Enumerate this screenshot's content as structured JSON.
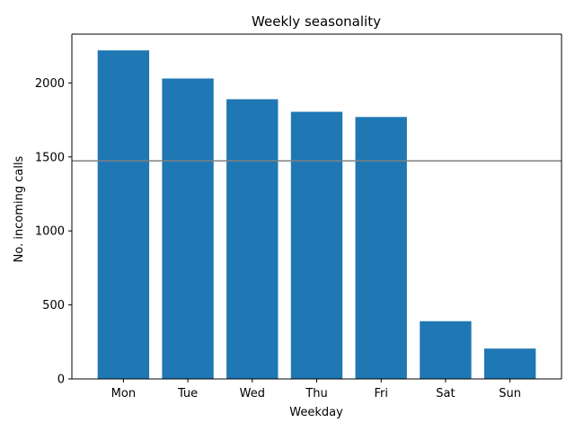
{
  "chart_data": {
    "type": "bar",
    "title": "Weekly seasonality",
    "xlabel": "Weekday",
    "ylabel": "No. incoming calls",
    "categories": [
      "Mon",
      "Tue",
      "Wed",
      "Thu",
      "Fri",
      "Sat",
      "Sun"
    ],
    "values": [
      2220,
      2030,
      1890,
      1805,
      1770,
      390,
      205
    ],
    "ylim": [
      0,
      2330
    ],
    "yticks": [
      0,
      500,
      1000,
      1500,
      2000
    ],
    "reference_line": {
      "value": 1474,
      "color": "#808080"
    },
    "bar_color": "#1f77b4",
    "grid": false,
    "legend": "none"
  }
}
